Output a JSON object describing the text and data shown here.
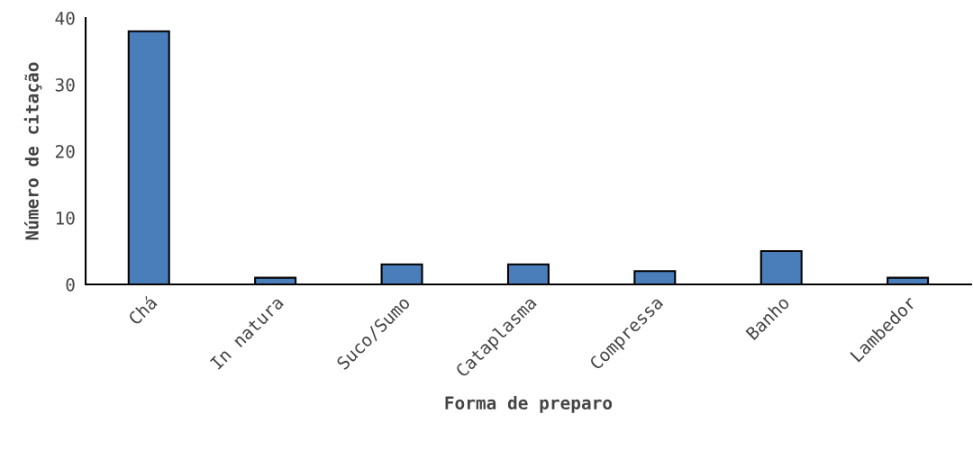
{
  "chart_data": {
    "type": "bar",
    "xlabel": "Forma de preparo",
    "ylabel": "Número de citação",
    "categories": [
      "Chá",
      "In natura",
      "Suco/Sumo",
      "Cataplasma",
      "Compressa",
      "Banho",
      "Lambedor"
    ],
    "values": [
      38,
      1,
      3,
      3,
      2,
      5,
      1
    ],
    "color": "#4a7ebb",
    "ylim": [
      0,
      40
    ],
    "yticks": [
      0,
      10,
      20,
      30,
      40
    ],
    "grid": false,
    "legend": false
  }
}
